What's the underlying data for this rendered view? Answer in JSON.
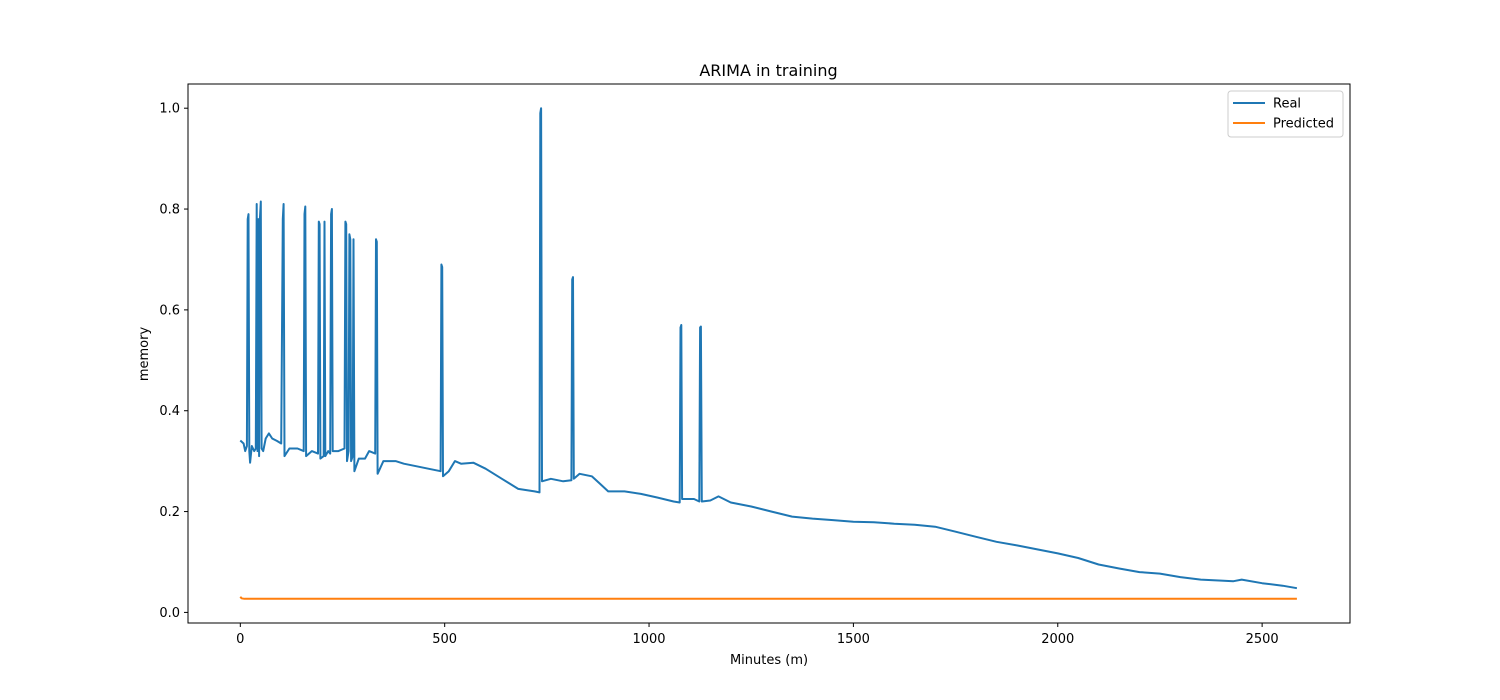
{
  "chart_data": {
    "type": "line",
    "title": "ARIMA in training",
    "xlabel": "Minutes (m)",
    "ylabel": "memory",
    "xlim": [
      -128,
      2715
    ],
    "ylim": [
      -0.021,
      1.048
    ],
    "xticks": [
      0,
      500,
      1000,
      1500,
      2000,
      2500
    ],
    "xtick_labels": [
      "0",
      "500",
      "1000",
      "1500",
      "2000",
      "2500"
    ],
    "yticks": [
      0.0,
      0.2,
      0.4,
      0.6,
      0.8,
      1.0
    ],
    "ytick_labels": [
      "0.0",
      "0.2",
      "0.4",
      "0.6",
      "0.8",
      "1.0"
    ],
    "grid": false,
    "legend_position": "top-right",
    "series": [
      {
        "name": "Real",
        "color": "#1f77b4",
        "points": [
          [
            0,
            0.341
          ],
          [
            8,
            0.335
          ],
          [
            12,
            0.32
          ],
          [
            16,
            0.33
          ],
          [
            18,
            0.78
          ],
          [
            20,
            0.79
          ],
          [
            22,
            0.32
          ],
          [
            24,
            0.297
          ],
          [
            28,
            0.33
          ],
          [
            34,
            0.32
          ],
          [
            38,
            0.325
          ],
          [
            40,
            0.81
          ],
          [
            42,
            0.32
          ],
          [
            44,
            0.78
          ],
          [
            46,
            0.31
          ],
          [
            48,
            0.78
          ],
          [
            50,
            0.815
          ],
          [
            52,
            0.325
          ],
          [
            56,
            0.32
          ],
          [
            62,
            0.345
          ],
          [
            70,
            0.355
          ],
          [
            78,
            0.345
          ],
          [
            90,
            0.34
          ],
          [
            100,
            0.335
          ],
          [
            104,
            0.78
          ],
          [
            106,
            0.81
          ],
          [
            108,
            0.31
          ],
          [
            120,
            0.325
          ],
          [
            140,
            0.325
          ],
          [
            155,
            0.32
          ],
          [
            157,
            0.79
          ],
          [
            159,
            0.805
          ],
          [
            161,
            0.31
          ],
          [
            175,
            0.32
          ],
          [
            190,
            0.315
          ],
          [
            192,
            0.775
          ],
          [
            194,
            0.77
          ],
          [
            196,
            0.305
          ],
          [
            204,
            0.31
          ],
          [
            206,
            0.775
          ],
          [
            208,
            0.31
          ],
          [
            215,
            0.32
          ],
          [
            220,
            0.315
          ],
          [
            222,
            0.79
          ],
          [
            224,
            0.8
          ],
          [
            226,
            0.32
          ],
          [
            240,
            0.32
          ],
          [
            255,
            0.325
          ],
          [
            257,
            0.775
          ],
          [
            259,
            0.77
          ],
          [
            261,
            0.3
          ],
          [
            265,
            0.32
          ],
          [
            267,
            0.75
          ],
          [
            269,
            0.74
          ],
          [
            271,
            0.3
          ],
          [
            275,
            0.31
          ],
          [
            277,
            0.74
          ],
          [
            279,
            0.28
          ],
          [
            290,
            0.305
          ],
          [
            305,
            0.305
          ],
          [
            315,
            0.32
          ],
          [
            330,
            0.315
          ],
          [
            332,
            0.74
          ],
          [
            334,
            0.735
          ],
          [
            336,
            0.275
          ],
          [
            350,
            0.3
          ],
          [
            380,
            0.3
          ],
          [
            400,
            0.295
          ],
          [
            430,
            0.29
          ],
          [
            460,
            0.285
          ],
          [
            490,
            0.28
          ],
          [
            492,
            0.69
          ],
          [
            494,
            0.685
          ],
          [
            496,
            0.27
          ],
          [
            510,
            0.28
          ],
          [
            525,
            0.3
          ],
          [
            540,
            0.295
          ],
          [
            570,
            0.297
          ],
          [
            600,
            0.285
          ],
          [
            640,
            0.265
          ],
          [
            680,
            0.245
          ],
          [
            720,
            0.24
          ],
          [
            732,
            0.238
          ],
          [
            734,
            0.99
          ],
          [
            736,
            1.0
          ],
          [
            738,
            0.26
          ],
          [
            760,
            0.265
          ],
          [
            790,
            0.26
          ],
          [
            810,
            0.262
          ],
          [
            812,
            0.66
          ],
          [
            814,
            0.665
          ],
          [
            816,
            0.265
          ],
          [
            830,
            0.275
          ],
          [
            860,
            0.27
          ],
          [
            880,
            0.255
          ],
          [
            900,
            0.24
          ],
          [
            940,
            0.24
          ],
          [
            980,
            0.235
          ],
          [
            1020,
            0.228
          ],
          [
            1060,
            0.22
          ],
          [
            1075,
            0.218
          ],
          [
            1077,
            0.565
          ],
          [
            1079,
            0.57
          ],
          [
            1081,
            0.225
          ],
          [
            1110,
            0.225
          ],
          [
            1123,
            0.22
          ],
          [
            1125,
            0.565
          ],
          [
            1127,
            0.567
          ],
          [
            1129,
            0.22
          ],
          [
            1150,
            0.222
          ],
          [
            1170,
            0.23
          ],
          [
            1200,
            0.218
          ],
          [
            1250,
            0.21
          ],
          [
            1300,
            0.2
          ],
          [
            1350,
            0.19
          ],
          [
            1400,
            0.186
          ],
          [
            1450,
            0.183
          ],
          [
            1500,
            0.18
          ],
          [
            1550,
            0.179
          ],
          [
            1600,
            0.176
          ],
          [
            1650,
            0.174
          ],
          [
            1700,
            0.17
          ],
          [
            1750,
            0.16
          ],
          [
            1800,
            0.15
          ],
          [
            1850,
            0.14
          ],
          [
            1900,
            0.133
          ],
          [
            1950,
            0.125
          ],
          [
            2000,
            0.117
          ],
          [
            2050,
            0.108
          ],
          [
            2100,
            0.095
          ],
          [
            2150,
            0.087
          ],
          [
            2200,
            0.08
          ],
          [
            2250,
            0.077
          ],
          [
            2300,
            0.07
          ],
          [
            2350,
            0.065
          ],
          [
            2400,
            0.063
          ],
          [
            2430,
            0.062
          ],
          [
            2450,
            0.065
          ],
          [
            2500,
            0.058
          ],
          [
            2550,
            0.053
          ],
          [
            2585,
            0.048
          ]
        ]
      },
      {
        "name": "Predicted",
        "color": "#ff7f0e",
        "points": [
          [
            0,
            0.031
          ],
          [
            3,
            0.028
          ],
          [
            10,
            0.027
          ],
          [
            500,
            0.027
          ],
          [
            1000,
            0.027
          ],
          [
            1500,
            0.027
          ],
          [
            2000,
            0.027
          ],
          [
            2585,
            0.027
          ]
        ]
      }
    ]
  }
}
